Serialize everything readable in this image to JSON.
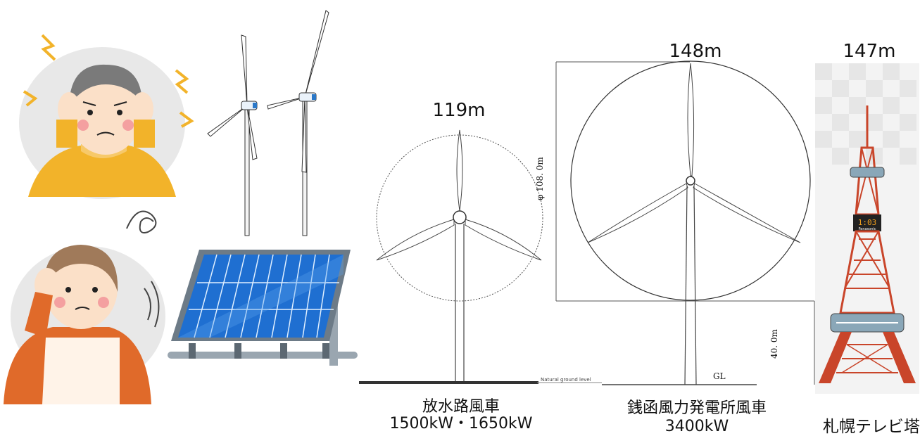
{
  "turbine_a": {
    "height": "119m",
    "name": "放水路風車",
    "rating": "1500kW・1650kW",
    "ground_note": "Natural ground level"
  },
  "turbine_b": {
    "height": "148m",
    "name": "銭函風力発電所風車",
    "rating": "3400kW",
    "rotor_dim": "φ 108. 0m",
    "hub_dim": "40. 0m",
    "ground_note": "GL"
  },
  "tower": {
    "height": "147m",
    "name": "札幌テレビ塔",
    "clock": "1:03",
    "brand": "Panasonic"
  },
  "colors": {
    "tower_red": "#c9452a",
    "panel_blue": "#1f6fd1",
    "shirt_yellow": "#f2b32a",
    "shirt_orange": "#e06a2a",
    "bg_gray": "#e8e8e8"
  }
}
